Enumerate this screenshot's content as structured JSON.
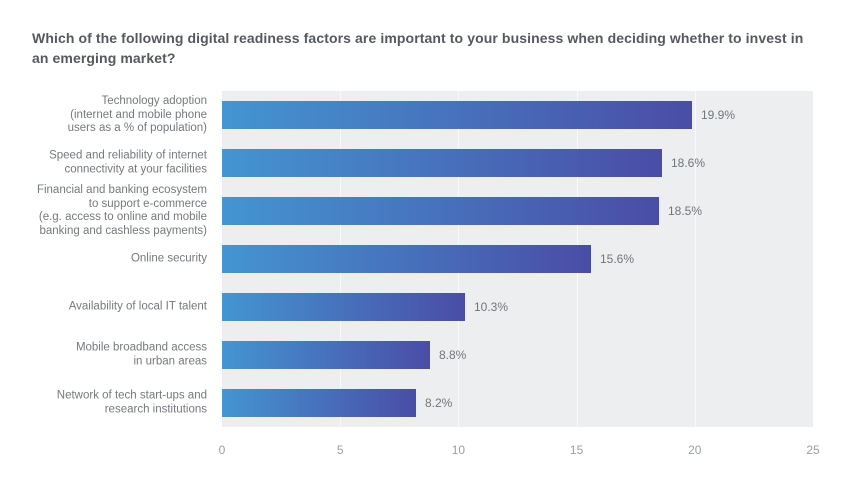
{
  "title": "Which of the following digital readiness factors are important to your business when deciding whether to invest in\nan emerging market?",
  "chart_data": {
    "type": "bar",
    "orientation": "horizontal",
    "categories": [
      "Technology adoption\n(internet and mobile phone\nusers as a % of population)",
      "Speed and reliability of internet\nconnectivity at your facilities",
      "Financial and banking ecosystem\nto support e-commerce\n(e.g. access to online and mobile\nbanking and cashless payments)",
      "Online security",
      "Availability of local IT talent",
      "Mobile broadband access\nin urban areas",
      "Network of tech start-ups and\nresearch institutions"
    ],
    "values": [
      19.9,
      18.6,
      18.5,
      15.6,
      10.3,
      8.8,
      8.2
    ],
    "value_labels": [
      "19.9%",
      "18.6%",
      "18.5%",
      "15.6%",
      "10.3%",
      "8.8%",
      "8.2%"
    ],
    "xlabel": "",
    "ylabel": "",
    "xlim": [
      0,
      25
    ],
    "x_ticks": [
      "0",
      "5",
      "10",
      "15",
      "20",
      "25"
    ],
    "grid": true,
    "legend": false,
    "colors": {
      "bar_gradient_start": "#4495d2",
      "bar_gradient_end": "#4a4da5",
      "plot_background": "#edeef0",
      "gridline": "#f8f9fa",
      "title_color": "#55595e",
      "category_label_color": "#75797d",
      "value_label_color": "#717579",
      "tick_label_color": "#9b9fa3"
    }
  }
}
